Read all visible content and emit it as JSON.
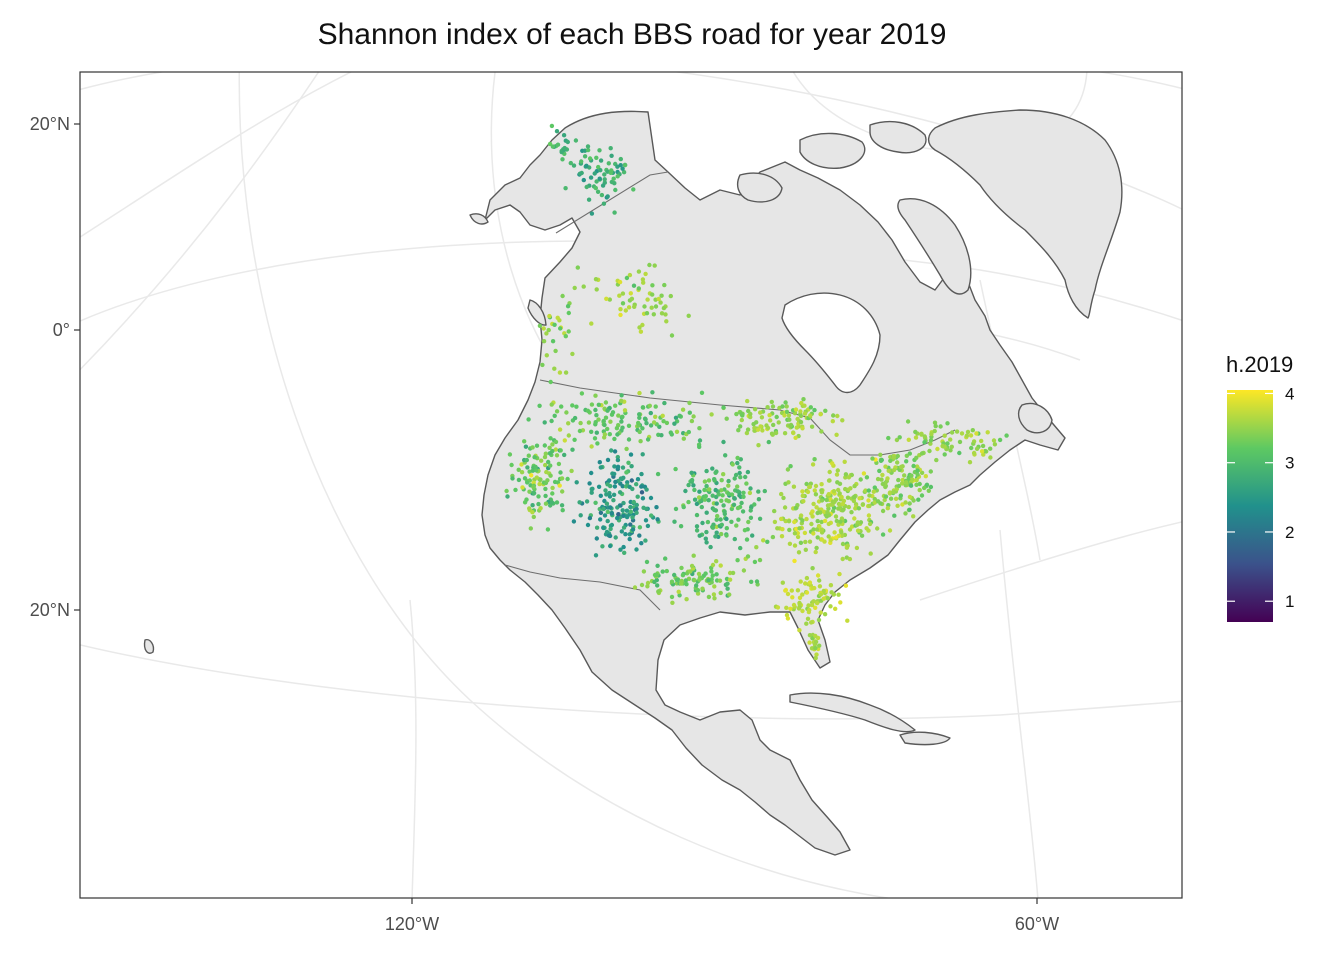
{
  "title": "Shannon index of each BBS road for year 2019",
  "axes": {
    "y_labels": [
      "20°N",
      "0°",
      "20°N"
    ],
    "x_labels": [
      "120°W",
      "60°W"
    ]
  },
  "legend": {
    "title": "h.2019",
    "ticks": [
      "4",
      "3",
      "2",
      "1"
    ],
    "range": [
      0.7,
      4.05
    ]
  },
  "colors": {
    "land_fill": "#e6e6e6",
    "border": "#595959",
    "graticule": "#e9e9e9",
    "viridis": [
      "#440154",
      "#3b528b",
      "#21918c",
      "#5ec962",
      "#fde725"
    ]
  },
  "chart_data": {
    "type": "scatter",
    "title": "Shannon index of each BBS road for year 2019",
    "xlabel": "",
    "ylabel": "",
    "variable": "h.2019",
    "value_range": [
      0.7,
      4.05
    ],
    "x_ticks": [
      "120°W",
      "60°W"
    ],
    "y_ticks": [
      "20°N",
      "0°",
      "20°N"
    ],
    "color_scale": "viridis",
    "legend_position": "right"
  }
}
